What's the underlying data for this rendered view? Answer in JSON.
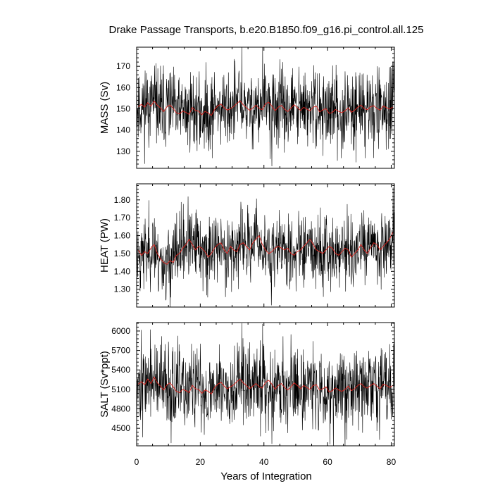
{
  "title": "Drake Passage Transports, b.e20.B1850.f09_g16.pi_control.all.125",
  "xlabel": "Years of Integration",
  "colors": {
    "raw": "#000000",
    "smooth": "#e0201a"
  },
  "chart_data": [
    {
      "type": "line",
      "ylabel": "MASS (Sv)",
      "xlim": [
        0,
        81
      ],
      "ylim": [
        122,
        179
      ],
      "x_ticks": [
        "0",
        "20",
        "40",
        "60",
        "80"
      ],
      "y_ticks": [
        "130",
        "140",
        "150",
        "160",
        "170"
      ],
      "series": [
        {
          "values": [
            151.0,
            152.1,
            150.8,
            152.9,
            151.2,
            153.6,
            151.7,
            150.4,
            148.7,
            150.9,
            151.8,
            150.2,
            148.1,
            147.6,
            149.0,
            148.3,
            147.4,
            150.6,
            149.1,
            148.9,
            147.2,
            148.8,
            148.0,
            146.9,
            149.7,
            151.4,
            152.2,
            150.5,
            149.4,
            150.1,
            151.1,
            152.5,
            153.8,
            151.9,
            150.6,
            149.3,
            150.4,
            151.7,
            150.2,
            149.6,
            152.4,
            153.1,
            151.3,
            149.1,
            150.8,
            151.6,
            149.8,
            148.7,
            150.3,
            151.9,
            150.6,
            149.2,
            150.7,
            149.9,
            149.0,
            150.8,
            151.2,
            148.6,
            149.4,
            150.1,
            147.8,
            148.3,
            149.7,
            148.8,
            148.2,
            149.1,
            150.5,
            148.4,
            149.3,
            150.8,
            151.7,
            150.1,
            149.6,
            150.9,
            151.5,
            150.2,
            149.4,
            151.3,
            150.6,
            149.9,
            150.8
          ]
        },
        {
          "values": []
        }
      ]
    },
    {
      "type": "line",
      "ylabel": "HEAT (PW)",
      "xlim": [
        0,
        81
      ],
      "ylim": [
        1.2,
        1.89
      ],
      "x_ticks": [
        "0",
        "20",
        "40",
        "60",
        "80"
      ],
      "y_ticks": [
        "1.30",
        "1.40",
        "1.50",
        "1.60",
        "1.70",
        "1.80"
      ],
      "series": [
        {
          "values": [
            1.52,
            1.49,
            1.51,
            1.5,
            1.53,
            1.55,
            1.5,
            1.47,
            1.45,
            1.44,
            1.46,
            1.45,
            1.49,
            1.5,
            1.53,
            1.55,
            1.58,
            1.55,
            1.52,
            1.54,
            1.53,
            1.51,
            1.48,
            1.5,
            1.53,
            1.55,
            1.56,
            1.52,
            1.5,
            1.54,
            1.52,
            1.51,
            1.55,
            1.56,
            1.54,
            1.52,
            1.56,
            1.58,
            1.6,
            1.55,
            1.52,
            1.5,
            1.51,
            1.53,
            1.54,
            1.53,
            1.52,
            1.53,
            1.5,
            1.49,
            1.51,
            1.52,
            1.54,
            1.56,
            1.58,
            1.55,
            1.52,
            1.51,
            1.5,
            1.52,
            1.54,
            1.53,
            1.5,
            1.49,
            1.51,
            1.53,
            1.52,
            1.48,
            1.5,
            1.52,
            1.55,
            1.52,
            1.5,
            1.53,
            1.56,
            1.55,
            1.52,
            1.54,
            1.56,
            1.58,
            1.62
          ]
        },
        {
          "values": []
        }
      ]
    },
    {
      "type": "line",
      "ylabel": "SALT (Sv*ppt)",
      "xlim": [
        0,
        81
      ],
      "ylim": [
        4230,
        6130
      ],
      "x_ticks": [
        "0",
        "20",
        "40",
        "60",
        "80"
      ],
      "y_ticks": [
        "4500",
        "4800",
        "5100",
        "5400",
        "5700",
        "6000"
      ],
      "series": [
        {
          "values": [
            5180,
            5220,
            5170,
            5260,
            5190,
            5290,
            5200,
            5150,
            5090,
            5170,
            5200,
            5140,
            5070,
            5050,
            5100,
            5080,
            5050,
            5160,
            5110,
            5100,
            5040,
            5090,
            5070,
            5030,
            5130,
            5180,
            5210,
            5150,
            5110,
            5140,
            5170,
            5220,
            5260,
            5200,
            5160,
            5110,
            5150,
            5190,
            5140,
            5120,
            5210,
            5240,
            5180,
            5100,
            5160,
            5190,
            5130,
            5090,
            5140,
            5200,
            5160,
            5110,
            5160,
            5130,
            5100,
            5160,
            5170,
            5090,
            5110,
            5140,
            5060,
            5080,
            5120,
            5090,
            5070,
            5100,
            5150,
            5080,
            5110,
            5160,
            5190,
            5140,
            5120,
            5160,
            5190,
            5150,
            5110,
            5180,
            5160,
            5130,
            5160
          ]
        },
        {
          "values": []
        }
      ]
    }
  ]
}
